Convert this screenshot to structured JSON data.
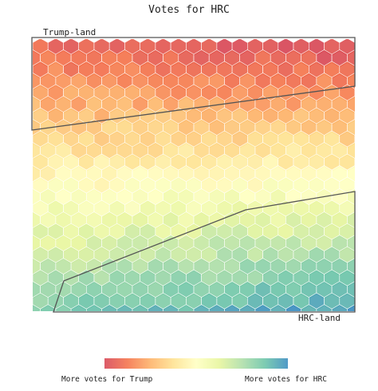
{
  "chart_data": {
    "type": "heatmap",
    "title": "Votes for HRC",
    "xlabel": "",
    "ylabel": "",
    "grid": false,
    "hex_grid": {
      "columns": 21,
      "rows": 24
    },
    "annotations": [
      {
        "id": "trump_land",
        "text": "Trump-land"
      },
      {
        "id": "hrc_land",
        "text": "HRC-land"
      }
    ],
    "colorbar": {
      "left_label": "More votes for Trump",
      "right_label": "More votes for HRC",
      "colors": [
        "#d53e4f",
        "#f46d43",
        "#fdae61",
        "#fee08b",
        "#ffffbf",
        "#e6f598",
        "#abdda4",
        "#66c2a5",
        "#3288bd"
      ]
    }
  }
}
